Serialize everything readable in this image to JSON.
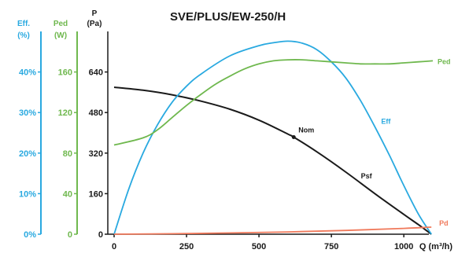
{
  "chart_data": {
    "type": "line",
    "title": "SVE/PLUS/EW-250/H",
    "x_axis": {
      "label": "Q (m³/h)",
      "range": [
        0,
        1100
      ],
      "ticks": [
        "0",
        "250",
        "500",
        "750",
        "1000"
      ]
    },
    "y_axes": [
      {
        "id": "eff",
        "header_line1": "Eff.",
        "header_line2": "(%)",
        "range": [
          0,
          50
        ],
        "ticks": [
          "0%",
          "10%",
          "20%",
          "30%",
          "40%"
        ],
        "color": "#29a9e0"
      },
      {
        "id": "ped",
        "header_line1": "Ped",
        "header_line2": "(W)",
        "range": [
          0,
          200
        ],
        "ticks": [
          "0",
          "40",
          "80",
          "120",
          "160"
        ],
        "color": "#6fb84e"
      },
      {
        "id": "p",
        "header_line1": "P",
        "header_line2": "(Pa)",
        "range": [
          0,
          800
        ],
        "ticks": [
          "0",
          "160",
          "320",
          "480",
          "640"
        ],
        "color": "#1a1a1a"
      }
    ],
    "series": [
      {
        "name": "Psf",
        "axis": "p",
        "color": "#1a1a1a",
        "x": [
          0,
          100,
          200,
          300,
          400,
          500,
          600,
          620,
          700,
          800,
          900,
          1000,
          1050,
          1095
        ],
        "y": [
          580,
          568,
          550,
          525,
          493,
          450,
          395,
          383,
          325,
          245,
          160,
          78,
          38,
          0
        ]
      },
      {
        "name": "Eff",
        "axis": "eff",
        "color": "#29a9e0",
        "x": [
          0,
          50,
          100,
          150,
          200,
          250,
          300,
          400,
          500,
          550,
          600,
          650,
          700,
          750,
          800,
          850,
          900,
          950,
          1000,
          1050,
          1095
        ],
        "y": [
          0,
          11,
          20,
          27,
          32.5,
          36.5,
          39.5,
          44,
          46.5,
          47.2,
          47.6,
          47.1,
          45.5,
          42.5,
          38.5,
          33,
          26.5,
          19.5,
          12,
          5,
          0
        ]
      },
      {
        "name": "Ped",
        "axis": "ped",
        "color": "#6fb84e",
        "x": [
          0,
          100,
          150,
          200,
          250,
          300,
          350,
          400,
          450,
          500,
          550,
          600,
          650,
          700,
          750,
          800,
          850,
          900,
          950,
          1000,
          1050,
          1100
        ],
        "y": [
          88,
          95,
          103,
          115,
          127,
          138,
          148,
          156,
          163,
          168,
          171,
          172,
          172,
          171,
          170,
          169,
          168,
          168,
          168,
          169,
          170,
          171
        ]
      },
      {
        "name": "Pd",
        "axis": "p",
        "color": "#f07a5c",
        "x": [
          0,
          200,
          400,
          600,
          800,
          1000,
          1095
        ],
        "y": [
          0,
          2,
          5,
          9,
          15,
          23,
          28
        ]
      }
    ],
    "annotations": [
      {
        "text": "Nom",
        "x": 620,
        "y": 383,
        "axis": "p",
        "marker": true
      }
    ]
  }
}
